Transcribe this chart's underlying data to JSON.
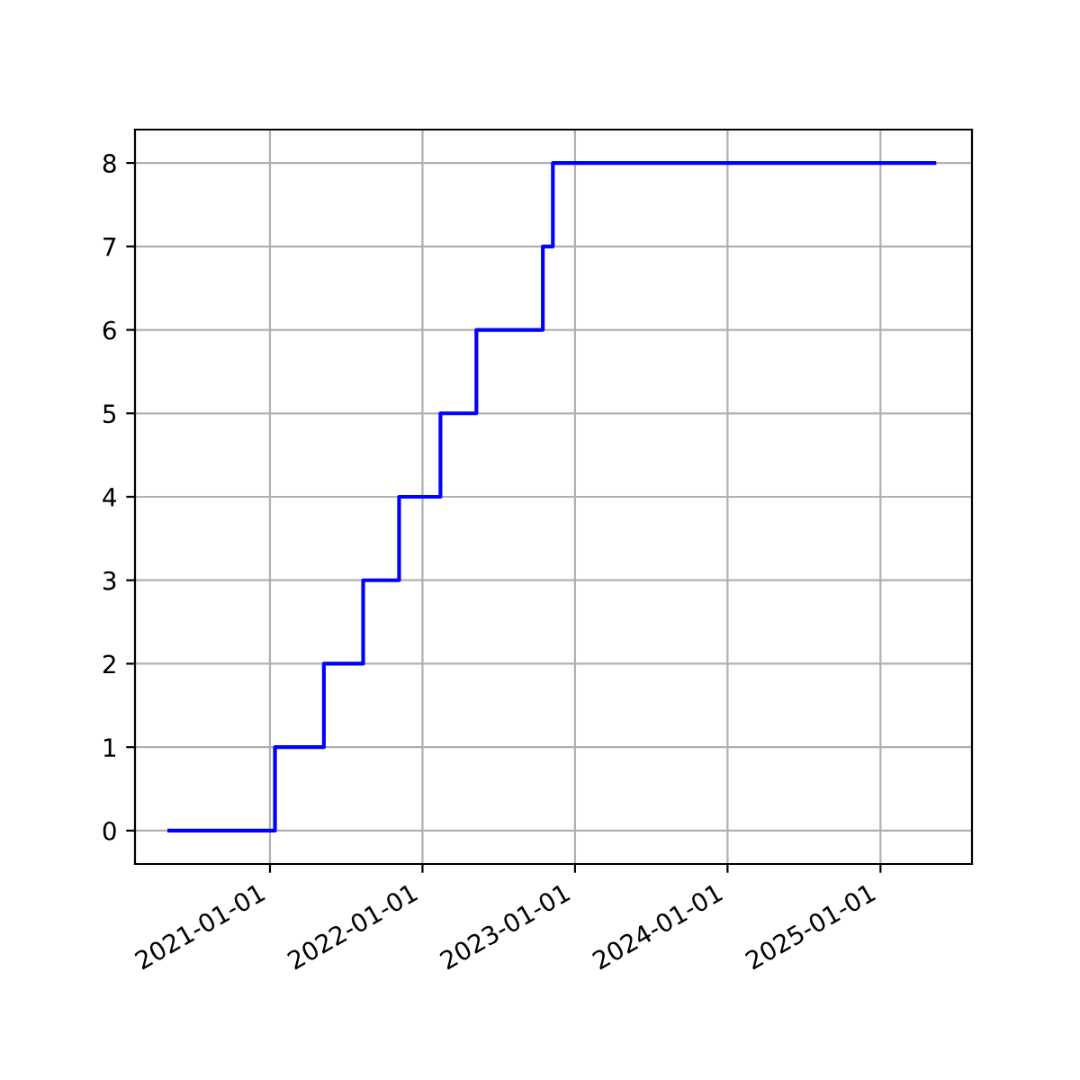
{
  "chart_data": {
    "type": "step",
    "x": [
      "2020-05-05",
      "2021-01-13",
      "2021-05-10",
      "2021-08-12",
      "2021-11-06",
      "2022-02-13",
      "2022-05-10",
      "2022-10-16",
      "2022-11-09",
      "2025-05-10"
    ],
    "series": [
      {
        "color": "#0000ff",
        "values": [
          0,
          1,
          2,
          3,
          4,
          5,
          6,
          7,
          8,
          8
        ]
      }
    ],
    "xlim": [
      "2020-02-13",
      "2025-08-08"
    ],
    "xticks": [
      {
        "value": "2021-01-01",
        "label": "2021-01-01"
      },
      {
        "value": "2022-01-01",
        "label": "2022-01-01"
      },
      {
        "value": "2023-01-01",
        "label": "2023-01-01"
      },
      {
        "value": "2024-01-01",
        "label": "2024-01-01"
      },
      {
        "value": "2025-01-01",
        "label": "2025-01-01"
      }
    ],
    "ylim": [
      -0.4,
      8.4
    ],
    "yticks": [
      0,
      1,
      2,
      3,
      4,
      5,
      6,
      7,
      8
    ],
    "grid": true,
    "line_style": "solid"
  }
}
